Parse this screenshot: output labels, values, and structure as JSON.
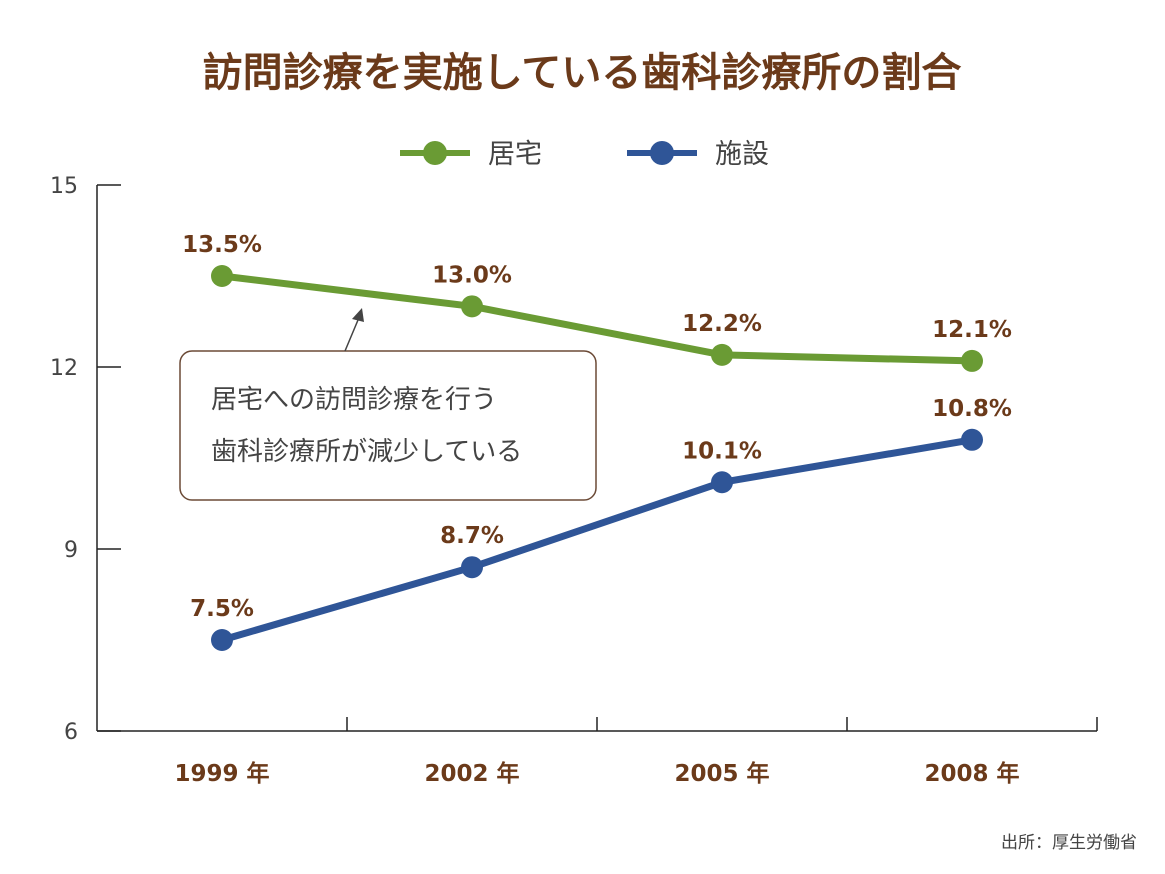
{
  "chart_data": {
    "type": "line",
    "title": "訪問診療を実施している歯科診療所の割合",
    "categories": [
      "1999 年",
      "2002 年",
      "2005 年",
      "2008 年"
    ],
    "series": [
      {
        "name": "居宅",
        "color": "#6a9b34",
        "values": [
          13.5,
          13.0,
          12.2,
          12.1
        ],
        "labels": [
          "13.5%",
          "13.0%",
          "12.2%",
          "12.1%"
        ]
      },
      {
        "name": "施設",
        "color": "#2f5597",
        "values": [
          7.5,
          8.7,
          10.1,
          10.8
        ],
        "labels": [
          "7.5%",
          "8.7%",
          "10.1%",
          "10.8%"
        ]
      }
    ],
    "ylim": [
      6,
      15
    ],
    "yticks": [
      6,
      9,
      12,
      15
    ],
    "ytick_labels": [
      "6",
      "9",
      "12",
      "15"
    ],
    "legend_position": "top",
    "grid": false,
    "annotation": {
      "lines": [
        "居宅への訪問診療を行う",
        "歯科診療所が減少している"
      ],
      "points_to": "居宅"
    },
    "source": "出所：厚生労働省"
  }
}
